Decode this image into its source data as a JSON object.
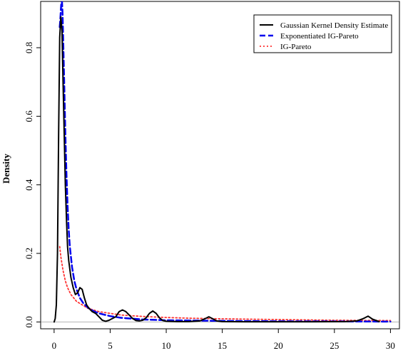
{
  "chart_data": {
    "type": "line",
    "title": "",
    "xlabel": "",
    "ylabel": "Density",
    "xlim": [
      -1.2,
      30.8
    ],
    "ylim": [
      -0.02,
      0.935
    ],
    "x_ticks": [
      0,
      5,
      10,
      15,
      20,
      25,
      30
    ],
    "x_tick_labels": [
      "0",
      "5",
      "10",
      "15",
      "20",
      "25",
      "30"
    ],
    "y_ticks": [
      0.0,
      0.2,
      0.4,
      0.6,
      0.8
    ],
    "y_tick_labels": [
      "0.0",
      "0.2",
      "0.4",
      "0.6",
      "0.8"
    ],
    "grid": false,
    "baseline": 0,
    "legend_position": "top-right",
    "series": [
      {
        "name": "Gaussian Kernel Density Estimate",
        "color": "#000000",
        "style": "solid",
        "x": [
          0,
          0.1,
          0.2,
          0.3,
          0.4,
          0.5,
          0.6,
          0.7,
          0.8,
          0.9,
          1.0,
          1.1,
          1.2,
          1.3,
          1.5,
          1.7,
          1.9,
          2.1,
          2.3,
          2.5,
          2.7,
          2.9,
          3.1,
          3.4,
          3.7,
          4.0,
          4.3,
          4.6,
          4.9,
          5.2,
          5.5,
          5.8,
          6.1,
          6.4,
          6.7,
          7.0,
          7.3,
          7.6,
          7.9,
          8.2,
          8.5,
          8.8,
          9.1,
          9.4,
          9.7,
          10.0,
          11.0,
          12.0,
          13.0,
          13.5,
          13.8,
          14.1,
          14.5,
          15.0,
          17.0,
          20.0,
          23.0,
          26.0,
          27.0,
          27.6,
          28.0,
          28.4,
          29.0
        ],
        "y": [
          0.0,
          0.01,
          0.05,
          0.2,
          0.55,
          0.83,
          0.89,
          0.85,
          0.7,
          0.55,
          0.4,
          0.3,
          0.22,
          0.18,
          0.13,
          0.1,
          0.08,
          0.085,
          0.1,
          0.095,
          0.07,
          0.05,
          0.04,
          0.03,
          0.025,
          0.015,
          0.005,
          0.002,
          0.005,
          0.01,
          0.015,
          0.03,
          0.035,
          0.03,
          0.02,
          0.01,
          0.004,
          0.003,
          0.005,
          0.012,
          0.025,
          0.032,
          0.025,
          0.012,
          0.004,
          0.002,
          0.001,
          0.001,
          0.003,
          0.01,
          0.015,
          0.01,
          0.003,
          0.001,
          0.0005,
          0.0005,
          0.0005,
          0.001,
          0.003,
          0.01,
          0.017,
          0.008,
          0.001
        ]
      },
      {
        "name": "Exponentiated IG-Pareto",
        "color": "#0000ee",
        "style": "dashed",
        "x": [
          0.5,
          0.55,
          0.6,
          0.65,
          0.7,
          0.75,
          0.8,
          0.9,
          1.0,
          1.1,
          1.2,
          1.3,
          1.4,
          1.6,
          1.8,
          2.0,
          2.3,
          2.6,
          3.0,
          3.5,
          4.0,
          5.0,
          6.0,
          8.0,
          10.0,
          15.0,
          20.0,
          25.0,
          30.0
        ],
        "y": [
          0.86,
          0.88,
          0.91,
          0.935,
          0.935,
          0.9,
          0.84,
          0.7,
          0.55,
          0.43,
          0.34,
          0.27,
          0.22,
          0.16,
          0.12,
          0.095,
          0.07,
          0.055,
          0.042,
          0.032,
          0.025,
          0.017,
          0.012,
          0.007,
          0.005,
          0.003,
          0.002,
          0.0015,
          0.001
        ]
      },
      {
        "name": "IG-Pareto",
        "color": "#ff3333",
        "style": "dotted",
        "x": [
          0.5,
          0.6,
          0.8,
          1.0,
          1.2,
          1.5,
          2.0,
          2.5,
          3.0,
          4.0,
          5.0,
          6.0,
          8.0,
          10.0,
          12.0,
          15.0,
          20.0,
          25.0,
          30.0
        ],
        "y": [
          0.22,
          0.19,
          0.15,
          0.12,
          0.1,
          0.08,
          0.06,
          0.05,
          0.04,
          0.03,
          0.025,
          0.02,
          0.016,
          0.013,
          0.011,
          0.009,
          0.007,
          0.005,
          0.004
        ]
      }
    ]
  }
}
